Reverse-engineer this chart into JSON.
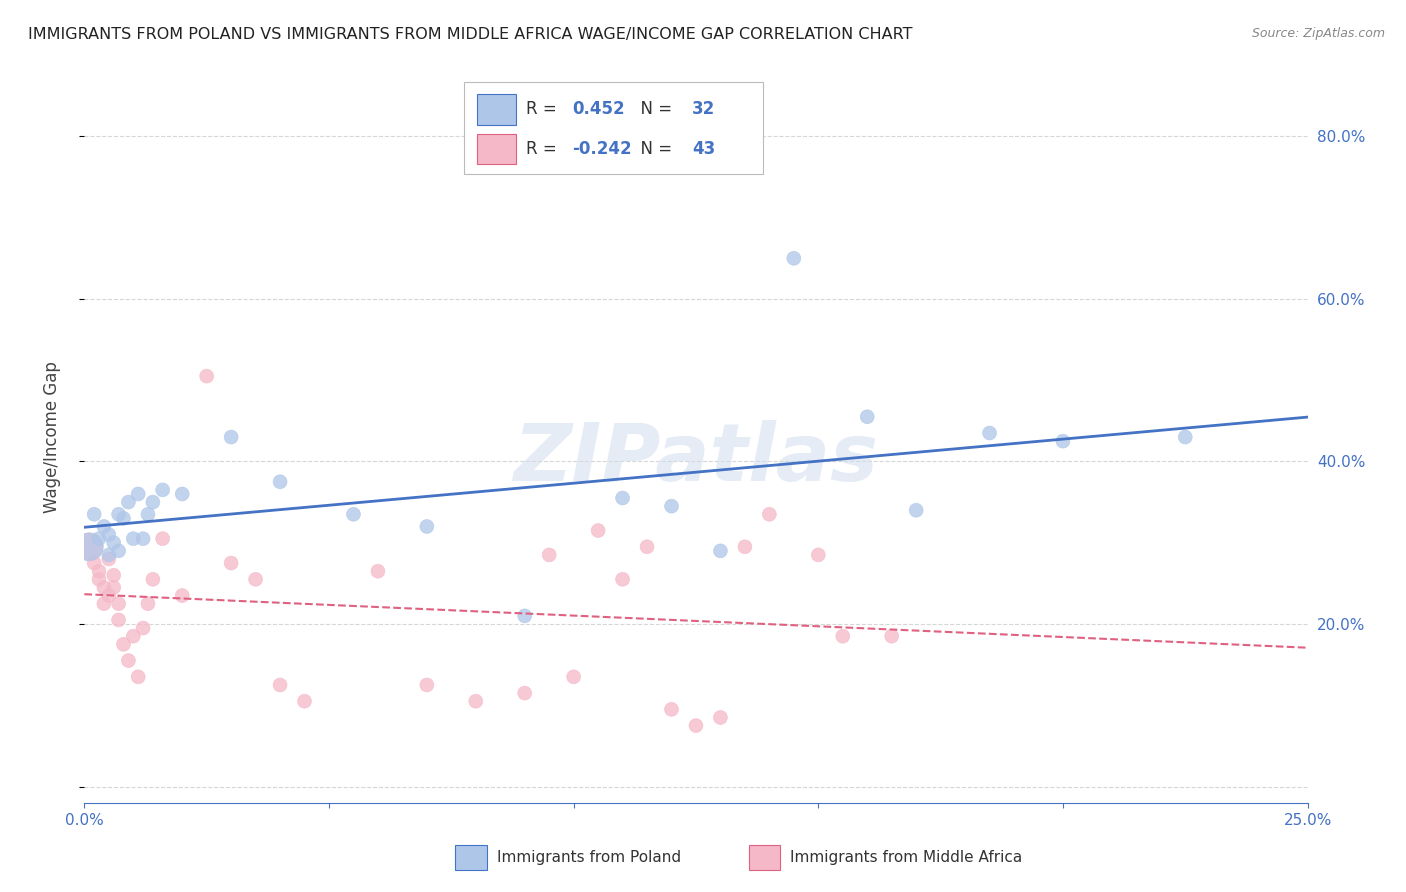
{
  "title": "IMMIGRANTS FROM POLAND VS IMMIGRANTS FROM MIDDLE AFRICA WAGE/INCOME GAP CORRELATION CHART",
  "source": "Source: ZipAtlas.com",
  "ylabel": "Wage/Income Gap",
  "xlabel_poland": "Immigrants from Poland",
  "xlabel_africa": "Immigrants from Middle Africa",
  "watermark": "ZIPatlas",
  "xlim": [
    0.0,
    0.25
  ],
  "ylim": [
    -0.02,
    0.88
  ],
  "poland_R": 0.452,
  "poland_N": 32,
  "africa_R": -0.242,
  "africa_N": 43,
  "poland_color": "#aec6e8",
  "poland_line_color": "#4472c4",
  "africa_color": "#f4b8c8",
  "africa_line_color": "#e06080",
  "axis_color": "#4472c4",
  "grid_color": "#cccccc",
  "legend_text_color": "#4472c4",
  "poland_x": [
    0.001,
    0.002,
    0.003,
    0.004,
    0.005,
    0.005,
    0.006,
    0.007,
    0.007,
    0.008,
    0.009,
    0.01,
    0.011,
    0.012,
    0.013,
    0.014,
    0.016,
    0.02,
    0.03,
    0.04,
    0.055,
    0.07,
    0.09,
    0.11,
    0.13,
    0.145,
    0.16,
    0.185,
    0.2,
    0.225,
    0.12,
    0.17
  ],
  "poland_y": [
    0.295,
    0.335,
    0.305,
    0.32,
    0.31,
    0.285,
    0.3,
    0.335,
    0.29,
    0.33,
    0.35,
    0.305,
    0.36,
    0.305,
    0.335,
    0.35,
    0.365,
    0.36,
    0.43,
    0.375,
    0.335,
    0.32,
    0.21,
    0.355,
    0.29,
    0.65,
    0.455,
    0.435,
    0.425,
    0.43,
    0.345,
    0.34
  ],
  "poland_sizes": [
    400,
    100,
    100,
    100,
    100,
    100,
    100,
    100,
    100,
    100,
    100,
    100,
    100,
    100,
    100,
    100,
    100,
    100,
    100,
    100,
    100,
    100,
    100,
    100,
    100,
    100,
    100,
    100,
    100,
    100,
    100,
    100
  ],
  "africa_x": [
    0.001,
    0.002,
    0.003,
    0.003,
    0.004,
    0.004,
    0.005,
    0.005,
    0.006,
    0.006,
    0.007,
    0.007,
    0.008,
    0.009,
    0.01,
    0.011,
    0.012,
    0.013,
    0.014,
    0.016,
    0.02,
    0.025,
    0.03,
    0.035,
    0.04,
    0.045,
    0.06,
    0.07,
    0.08,
    0.09,
    0.095,
    0.1,
    0.105,
    0.11,
    0.115,
    0.12,
    0.125,
    0.13,
    0.135,
    0.14,
    0.15,
    0.155,
    0.165
  ],
  "africa_y": [
    0.295,
    0.275,
    0.255,
    0.265,
    0.245,
    0.225,
    0.28,
    0.235,
    0.26,
    0.245,
    0.225,
    0.205,
    0.175,
    0.155,
    0.185,
    0.135,
    0.195,
    0.225,
    0.255,
    0.305,
    0.235,
    0.505,
    0.275,
    0.255,
    0.125,
    0.105,
    0.265,
    0.125,
    0.105,
    0.115,
    0.285,
    0.135,
    0.315,
    0.255,
    0.295,
    0.095,
    0.075,
    0.085,
    0.295,
    0.335,
    0.285,
    0.185,
    0.185
  ],
  "africa_sizes": [
    400,
    100,
    100,
    100,
    100,
    100,
    100,
    100,
    100,
    100,
    100,
    100,
    100,
    100,
    100,
    100,
    100,
    100,
    100,
    100,
    100,
    100,
    100,
    100,
    100,
    100,
    100,
    100,
    100,
    100,
    100,
    100,
    100,
    100,
    100,
    100,
    100,
    100,
    100,
    100,
    100,
    100,
    100
  ]
}
